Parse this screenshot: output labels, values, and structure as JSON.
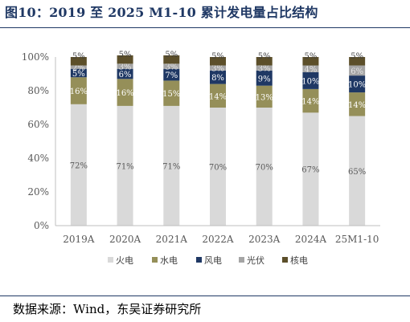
{
  "figure": {
    "title": "图10：2019 至 2025 M1-10 累计发电量占比结构",
    "source": "数据来源：Wind，东吴证券研究所"
  },
  "chart_data": {
    "type": "bar",
    "stacked": true,
    "title": "",
    "xlabel": "",
    "ylabel": "",
    "ylim": [
      0,
      100
    ],
    "y_unit": "%",
    "y_ticks": [
      "0%",
      "20%",
      "40%",
      "60%",
      "80%",
      "100%"
    ],
    "categories": [
      "2019A",
      "2020A",
      "2021A",
      "2022A",
      "2023A",
      "2024A",
      "25M1-10"
    ],
    "legend_position": "bottom",
    "grid": false,
    "series": [
      {
        "name": "火电",
        "color": "#d9d9d9",
        "label_color": "#595959",
        "values": [
          72,
          71,
          71,
          70,
          70,
          67,
          65
        ]
      },
      {
        "name": "水电",
        "color": "#958f59",
        "label_color": "#ffffff",
        "values": [
          16,
          16,
          15,
          14,
          13,
          14,
          14
        ]
      },
      {
        "name": "风电",
        "color": "#1f3864",
        "label_color": "#ffffff",
        "values": [
          5,
          6,
          7,
          8,
          9,
          10,
          10
        ]
      },
      {
        "name": "光伏",
        "color": "#a5a5a5",
        "label_color": "#e6e6e6",
        "values": [
          2,
          3,
          3,
          3,
          3,
          4,
          6
        ]
      },
      {
        "name": "核电",
        "color": "#5c4f2a",
        "label_color": "#404040",
        "values": [
          5,
          5,
          5,
          5,
          5,
          5,
          5
        ],
        "label_above": true
      }
    ]
  }
}
